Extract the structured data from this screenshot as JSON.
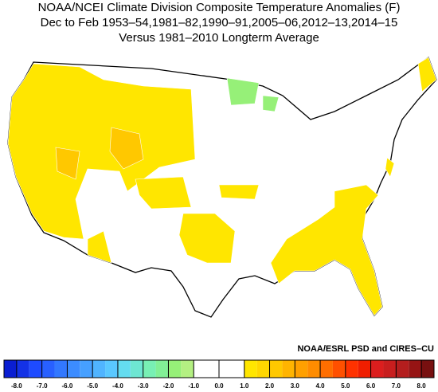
{
  "header": {
    "title": "NOAA/NCEI Climate Division Composite Temperature Anomalies (F)",
    "line2": "Dec to Feb  1953–54,1981–82,1990–91,2005–06,2012–13,2014–15",
    "line3": "Versus 1981–2010 Longterm Average"
  },
  "credit": "NOAA/ESRL PSD and CIRES–CU",
  "colorbar": {
    "lim": [
      -8.5,
      8.5
    ],
    "colors": [
      "#0a1ed2",
      "#1432e6",
      "#1e4bff",
      "#2860ff",
      "#3278ff",
      "#3c8cff",
      "#46a0ff",
      "#50b4ff",
      "#5ac8ff",
      "#64dcf0",
      "#6ee6d2",
      "#78f0b4",
      "#82f096",
      "#96f078",
      "#b4f082",
      "#ffffff",
      "#ffffff",
      "#ffffff",
      "#ffffff",
      "#ffe600",
      "#ffd700",
      "#ffc800",
      "#ffb400",
      "#ffa000",
      "#ff8c00",
      "#ff6e00",
      "#ff5000",
      "#ff3200",
      "#f01e00",
      "#dc1e1e",
      "#c81e1e",
      "#b41e1e",
      "#961414",
      "#781010"
    ],
    "ticks": [
      {
        "value": -8,
        "label": "-8.0"
      },
      {
        "value": -7,
        "label": "-7.0"
      },
      {
        "value": -6,
        "label": "-6.0"
      },
      {
        "value": -5,
        "label": "-5.0"
      },
      {
        "value": -4,
        "label": "-4.0"
      },
      {
        "value": -3,
        "label": "-3.0"
      },
      {
        "value": -2,
        "label": "-2.0"
      },
      {
        "value": -1,
        "label": "-1.0"
      },
      {
        "value": 0,
        "label": "0.0"
      },
      {
        "value": 1,
        "label": "1.0"
      },
      {
        "value": 2,
        "label": "2.0"
      },
      {
        "value": 3,
        "label": "3.0"
      },
      {
        "value": 4,
        "label": "4.0"
      },
      {
        "value": 5,
        "label": "5.0"
      },
      {
        "value": 6,
        "label": "6.0"
      },
      {
        "value": 7,
        "label": "7.0"
      },
      {
        "value": 8,
        "label": "8.0"
      }
    ]
  }
}
